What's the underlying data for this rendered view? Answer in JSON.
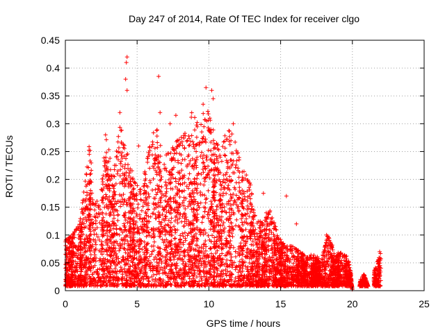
{
  "chart_data": {
    "type": "scatter",
    "title": "Day 247 of 2014, Rate Of TEC Index for receiver clgo",
    "xlabel": "GPS time / hours",
    "ylabel": "ROTI / TECUs",
    "xlim": [
      0,
      25
    ],
    "ylim": [
      0,
      0.45
    ],
    "x_ticks": [
      0,
      5,
      10,
      15,
      20,
      25
    ],
    "y_ticks": [
      0,
      0.05,
      0.1,
      0.15,
      0.2,
      0.25,
      0.3,
      0.35,
      0.4,
      0.45
    ],
    "x_tick_labels": [
      "0",
      "5",
      "10",
      "15",
      "20",
      "25"
    ],
    "y_tick_labels": [
      "0",
      "0.05",
      "0.1",
      "0.15",
      "0.2",
      "0.25",
      "0.3",
      "0.35",
      "0.4",
      "0.45"
    ],
    "grid": true,
    "marker": "+",
    "marker_color": "#ff0000",
    "series": [
      {
        "name": "ROTI",
        "envelope_hours": [
          0,
          0.5,
          1.0,
          1.5,
          1.7,
          2.0,
          2.5,
          2.9,
          3.3,
          3.8,
          4.3,
          4.8,
          5.3,
          5.8,
          6.3,
          6.8,
          7.3,
          7.8,
          8.3,
          8.8,
          9.3,
          9.8,
          10.3,
          10.8,
          11.3,
          11.8,
          12.3,
          12.8,
          13.3,
          13.8,
          14.3,
          14.8,
          15.3,
          15.8,
          16.3,
          16.8,
          17.3,
          17.8,
          18.3,
          18.8,
          19.3,
          19.8,
          20.0,
          20.4,
          20.8,
          21.2,
          21.6,
          22.0
        ],
        "envelope_roti": [
          0.09,
          0.1,
          0.12,
          0.22,
          0.27,
          0.15,
          0.2,
          0.28,
          0.2,
          0.3,
          0.25,
          0.2,
          0.18,
          0.25,
          0.3,
          0.24,
          0.25,
          0.27,
          0.28,
          0.32,
          0.3,
          0.33,
          0.3,
          0.24,
          0.3,
          0.27,
          0.22,
          0.2,
          0.13,
          0.12,
          0.15,
          0.1,
          0.08,
          0.08,
          0.07,
          0.06,
          0.06,
          0.05,
          0.1,
          0.06,
          0.07,
          0.05,
          0.0,
          0.0,
          0.03,
          0.0,
          0.04,
          0.07
        ],
        "outliers": [
          [
            4.3,
            0.42
          ],
          [
            4.25,
            0.41
          ],
          [
            4.3,
            0.36
          ],
          [
            4.2,
            0.38
          ],
          [
            6.5,
            0.385
          ],
          [
            3.8,
            0.32
          ],
          [
            9.8,
            0.365
          ],
          [
            10.2,
            0.36
          ],
          [
            10.3,
            0.345
          ],
          [
            9.6,
            0.335
          ],
          [
            6.6,
            0.32
          ],
          [
            11.7,
            0.3
          ],
          [
            2.8,
            0.28
          ],
          [
            5.1,
            0.26
          ],
          [
            7.7,
            0.315
          ],
          [
            12.9,
            0.19
          ],
          [
            13.8,
            0.175
          ],
          [
            15.4,
            0.17
          ],
          [
            16.1,
            0.12
          ],
          [
            18.2,
            0.1
          ],
          [
            20.7,
            0.025
          ],
          [
            21.9,
            0.07
          ],
          [
            14.0,
            0.14
          ],
          [
            7.3,
            0.3
          ],
          [
            8.5,
            0.27
          ]
        ]
      }
    ]
  }
}
